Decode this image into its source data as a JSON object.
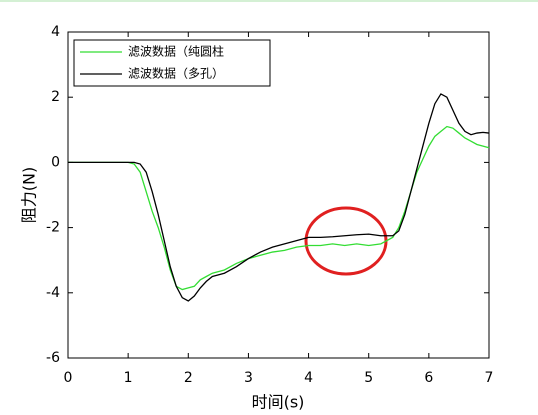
{
  "chart_data": {
    "type": "line",
    "xlabel": "时间(s)",
    "ylabel": "阻力(N)",
    "x": [
      0,
      0.5,
      1.0,
      1.1,
      1.2,
      1.3,
      1.4,
      1.5,
      1.6,
      1.7,
      1.8,
      1.9,
      2.0,
      2.1,
      2.2,
      2.3,
      2.4,
      2.6,
      2.8,
      3.0,
      3.2,
      3.4,
      3.6,
      3.8,
      4.0,
      4.2,
      4.4,
      4.6,
      4.8,
      5.0,
      5.2,
      5.4,
      5.5,
      5.6,
      5.7,
      5.8,
      5.9,
      6.0,
      6.1,
      6.2,
      6.3,
      6.4,
      6.5,
      6.6,
      6.7,
      6.8,
      6.9,
      7.0
    ],
    "series": [
      {
        "name": "滤波数据（纯圆柱",
        "color": "#33dd33",
        "values": [
          0,
          0,
          0,
          -0.05,
          -0.3,
          -0.9,
          -1.5,
          -2.0,
          -2.6,
          -3.3,
          -3.8,
          -3.9,
          -3.85,
          -3.8,
          -3.6,
          -3.5,
          -3.4,
          -3.3,
          -3.1,
          -2.95,
          -2.85,
          -2.75,
          -2.7,
          -2.6,
          -2.55,
          -2.55,
          -2.5,
          -2.55,
          -2.5,
          -2.55,
          -2.5,
          -2.3,
          -2.0,
          -1.5,
          -0.9,
          -0.3,
          0.1,
          0.5,
          0.8,
          0.95,
          1.1,
          1.05,
          0.9,
          0.75,
          0.65,
          0.55,
          0.5,
          0.45
        ]
      },
      {
        "name": "滤波数据（多孔）",
        "color": "#000000",
        "values": [
          0,
          0,
          0,
          0,
          -0.05,
          -0.3,
          -0.9,
          -1.6,
          -2.4,
          -3.2,
          -3.8,
          -4.15,
          -4.25,
          -4.1,
          -3.85,
          -3.65,
          -3.5,
          -3.4,
          -3.2,
          -2.95,
          -2.75,
          -2.6,
          -2.5,
          -2.4,
          -2.3,
          -2.3,
          -2.28,
          -2.25,
          -2.22,
          -2.2,
          -2.25,
          -2.25,
          -2.1,
          -1.6,
          -0.9,
          -0.2,
          0.5,
          1.2,
          1.8,
          2.1,
          2.0,
          1.6,
          1.2,
          0.95,
          0.85,
          0.9,
          0.92,
          0.9
        ]
      }
    ],
    "xlim": [
      0,
      7
    ],
    "xticks": [
      0,
      1,
      2,
      3,
      4,
      5,
      6,
      7
    ],
    "ylim": [
      -6,
      4
    ],
    "yticks": [
      -6,
      -4,
      -2,
      0,
      2,
      4
    ],
    "legend": "upper left"
  }
}
